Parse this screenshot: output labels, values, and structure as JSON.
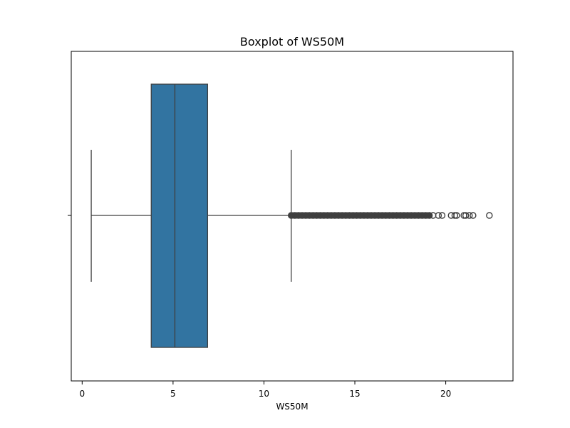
{
  "chart_data": {
    "type": "boxplot",
    "title": "Boxplot of WS50M",
    "xlabel": "WS50M",
    "ylabel": "",
    "orientation": "horizontal",
    "xlim": [
      -0.6,
      23.7
    ],
    "xticks": [
      0,
      5,
      10,
      15,
      20
    ],
    "xtick_labels": [
      "0",
      "5",
      "10",
      "15",
      "20"
    ],
    "grid": false,
    "box": {
      "whisker_low": 0.5,
      "q1": 3.8,
      "median": 5.1,
      "q3": 6.9,
      "whisker_high": 11.5
    },
    "outliers": [
      11.5,
      11.7,
      11.9,
      12.1,
      12.3,
      12.5,
      12.7,
      12.9,
      13.1,
      13.3,
      13.5,
      13.7,
      13.9,
      14.1,
      14.3,
      14.5,
      14.7,
      14.9,
      15.1,
      15.3,
      15.5,
      15.7,
      15.9,
      16.1,
      16.3,
      16.5,
      16.7,
      16.9,
      17.1,
      17.3,
      17.5,
      17.7,
      17.9,
      18.1,
      18.3,
      18.5,
      18.7,
      18.9,
      19.1,
      19.3,
      19.6,
      19.8,
      20.3,
      20.5,
      20.6,
      21.0,
      21.1,
      21.3,
      21.5,
      22.4
    ],
    "colors": {
      "box_fill": "#3274a1",
      "lines": "#3f3f3f",
      "outlier_edge": "#3f3f3f"
    }
  }
}
